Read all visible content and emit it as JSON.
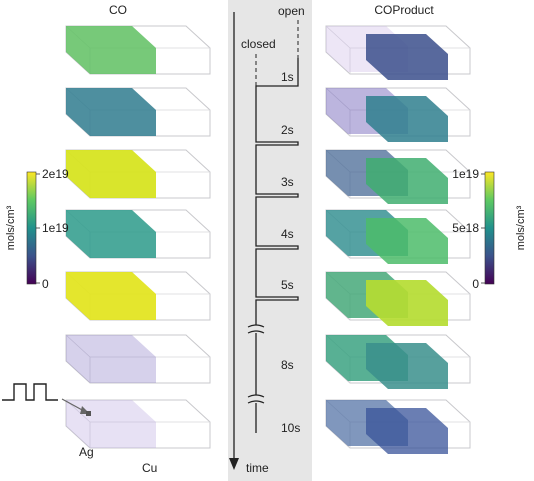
{
  "panels": {
    "left_title": "CO",
    "right_title": "COProduct"
  },
  "left_colorbar": {
    "unit": "mols/cm³",
    "ticks": [
      "2e19",
      "1e19",
      "0"
    ]
  },
  "right_colorbar": {
    "unit": "mols/cm³",
    "ticks": [
      "1e19",
      "5e18",
      "0"
    ]
  },
  "timeline": {
    "state_open": "open",
    "state_closed": "closed",
    "times": [
      "1s",
      "2s",
      "3s",
      "4s",
      "5s",
      "8s",
      "10s"
    ],
    "axis_label": "time"
  },
  "materials": {
    "silver": "Ag",
    "copper": "Cu"
  },
  "colors": {
    "timeline_bg": "#e6e6e6",
    "viridis_low": "#440154",
    "viridis_mid": "#21918c",
    "viridis_high": "#fde725"
  },
  "left_boxes": [
    {
      "color": "#5fc061",
      "opacity": 0.85
    },
    {
      "color": "#2f7b8e",
      "opacity": 0.85
    },
    {
      "color": "#d6e31a",
      "opacity": 0.92
    },
    {
      "color": "#2c9a8a",
      "opacity": 0.85
    },
    {
      "color": "#e2e41b",
      "opacity": 0.92
    },
    {
      "color": "#8a7cc6",
      "opacity": 0.35
    },
    {
      "color": "#b9a9e0",
      "opacity": 0.35
    }
  ],
  "right_boxes": [
    {
      "ag": "#cbb8e6",
      "ag_op": 0.35,
      "cu": "#3b4f8c",
      "cu_op": 0.85
    },
    {
      "ag": "#6a5cb5",
      "ag_op": 0.45,
      "cu": "#2f7f8e",
      "cu_op": 0.85
    },
    {
      "ag": "#3c5f8f",
      "ag_op": 0.7,
      "cu": "#3fae70",
      "cu_op": 0.85
    },
    {
      "ag": "#2b8b8c",
      "ag_op": 0.8,
      "cu": "#4cbc6a",
      "cu_op": 0.85
    },
    {
      "ag": "#3aa271",
      "ag_op": 0.8,
      "cu": "#b5dc32",
      "cu_op": 0.92
    },
    {
      "ag": "#2e9c79",
      "ag_op": 0.8,
      "cu": "#3a8f8c",
      "cu_op": 0.85
    },
    {
      "ag": "#4a6ba1",
      "ag_op": 0.7,
      "cu": "#38539a",
      "cu_op": 0.75
    }
  ]
}
